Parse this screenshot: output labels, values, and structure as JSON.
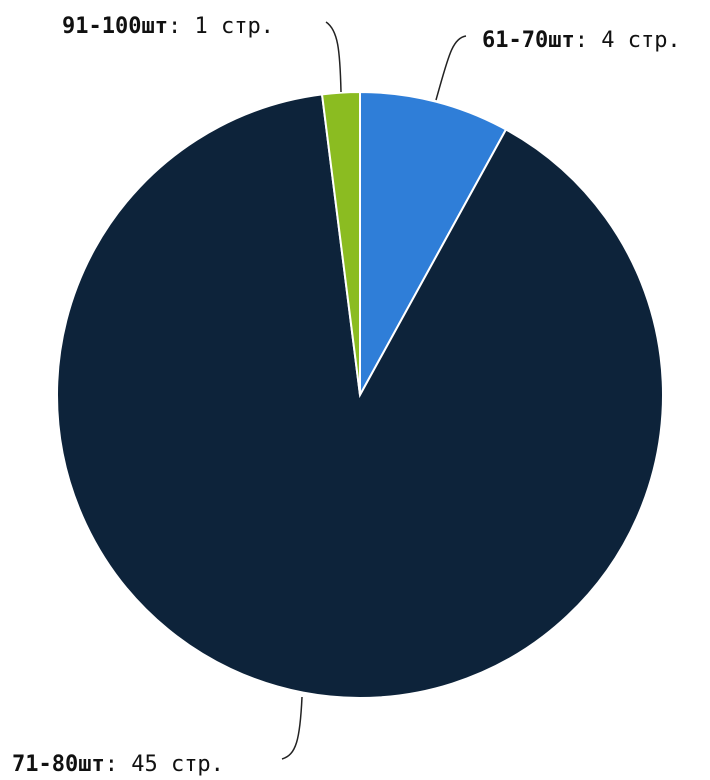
{
  "chart_data": {
    "type": "pie",
    "title": "",
    "slices": [
      {
        "label": "61-70шт",
        "value": 4,
        "value_text": ": 4 стр.",
        "color": "#2f7ed8"
      },
      {
        "label": "71-80шт",
        "value": 45,
        "value_text": ": 45 стр.",
        "color": "#0d233a"
      },
      {
        "label": "91-100шт",
        "value": 1,
        "value_text": ": 1 стр.",
        "color": "#8bbc21"
      }
    ],
    "legend": "none",
    "data_labels": "outside-with-leader-lines"
  }
}
